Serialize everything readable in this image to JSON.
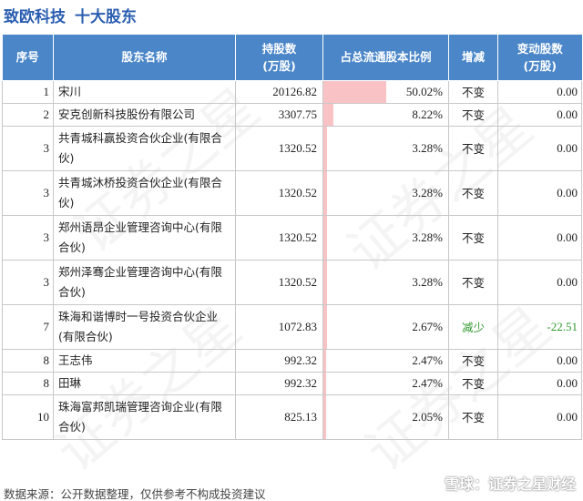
{
  "title": {
    "company": "致欧科技",
    "subtitle": "十大股东"
  },
  "table": {
    "headers": {
      "rank": "序号",
      "name": "股东名称",
      "shares": "持股数\n(万股)",
      "ratio": "占总流通股本比例",
      "change": "增减",
      "delta": "变动股数\n(万股)"
    },
    "rows": [
      {
        "rank": "1",
        "name": "宋川",
        "shares": "20126.82",
        "ratio": "50.02%",
        "ratio_value": 50.02,
        "change": "不变",
        "delta": "0.00",
        "down": false
      },
      {
        "rank": "2",
        "name": "安克创新科技股份有限公司",
        "shares": "3307.75",
        "ratio": "8.22%",
        "ratio_value": 8.22,
        "change": "不变",
        "delta": "0.00",
        "down": false
      },
      {
        "rank": "3",
        "name": "共青城科赢投资合伙企业(有限合伙)",
        "shares": "1320.52",
        "ratio": "3.28%",
        "ratio_value": 3.28,
        "change": "不变",
        "delta": "0.00",
        "down": false
      },
      {
        "rank": "3",
        "name": "共青城沐桥投资合伙企业(有限合伙)",
        "shares": "1320.52",
        "ratio": "3.28%",
        "ratio_value": 3.28,
        "change": "不变",
        "delta": "0.00",
        "down": false
      },
      {
        "rank": "3",
        "name": "郑州语昂企业管理咨询中心(有限合伙)",
        "shares": "1320.52",
        "ratio": "3.28%",
        "ratio_value": 3.28,
        "change": "不变",
        "delta": "0.00",
        "down": false
      },
      {
        "rank": "3",
        "name": "郑州泽骞企业管理咨询中心(有限合伙)",
        "shares": "1320.52",
        "ratio": "3.28%",
        "ratio_value": 3.28,
        "change": "不变",
        "delta": "0.00",
        "down": false
      },
      {
        "rank": "7",
        "name": "珠海和谐博时一号投资合伙企业(有限合伙)",
        "shares": "1072.83",
        "ratio": "2.67%",
        "ratio_value": 2.67,
        "change": "减少",
        "delta": "-22.51",
        "down": true
      },
      {
        "rank": "8",
        "name": "王志伟",
        "shares": "992.32",
        "ratio": "2.47%",
        "ratio_value": 2.47,
        "change": "不变",
        "delta": "0.00",
        "down": false
      },
      {
        "rank": "8",
        "name": "田琳",
        "shares": "992.32",
        "ratio": "2.47%",
        "ratio_value": 2.47,
        "change": "不变",
        "delta": "0.00",
        "down": false
      },
      {
        "rank": "10",
        "name": "珠海富邦凯瑞管理咨询企业(有限合伙)",
        "shares": "825.13",
        "ratio": "2.05%",
        "ratio_value": 2.05,
        "change": "不变",
        "delta": "0.00",
        "down": false
      }
    ]
  },
  "colors": {
    "header_bg": "#4a86c8",
    "title": "#2a5db0",
    "ratio_bar": "#f9c3c6",
    "decrease": "#2f9a2f"
  },
  "footer": {
    "source": "数据来源：公开数据整理，仅供参考不构成投资建议",
    "brand": "雪球：证券之星财经",
    "brand_icon": "snowball-logo-icon"
  },
  "watermark": "证券之星"
}
